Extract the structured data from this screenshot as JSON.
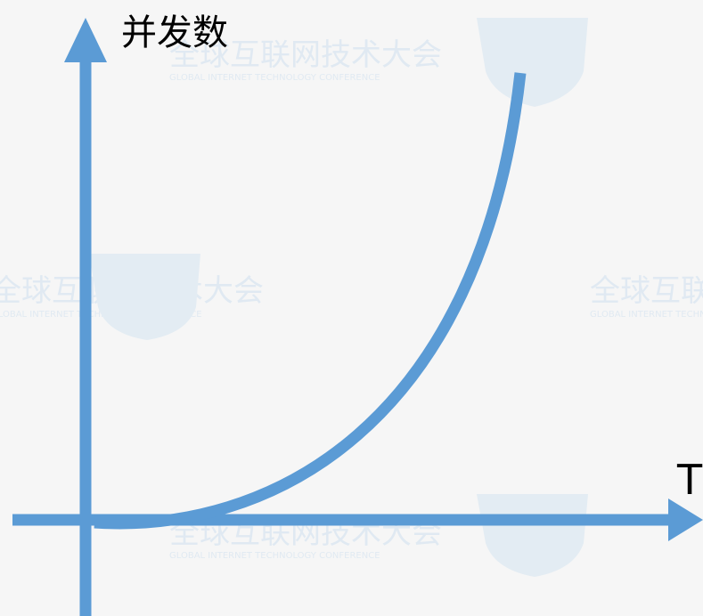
{
  "diagram": {
    "y_axis_label": "并发数",
    "x_axis_label": "T",
    "curve": "exponential-growth"
  },
  "watermark": {
    "title": "全球互联网技术大会",
    "subtitle": "GLOBAL INTERNET TECHNOLOGY CONFERENCE"
  },
  "colors": {
    "background": "#f6f6f6",
    "axis": "#5b9bd5",
    "curve": "#5b9bd5",
    "watermark": "#cfe0ef"
  }
}
